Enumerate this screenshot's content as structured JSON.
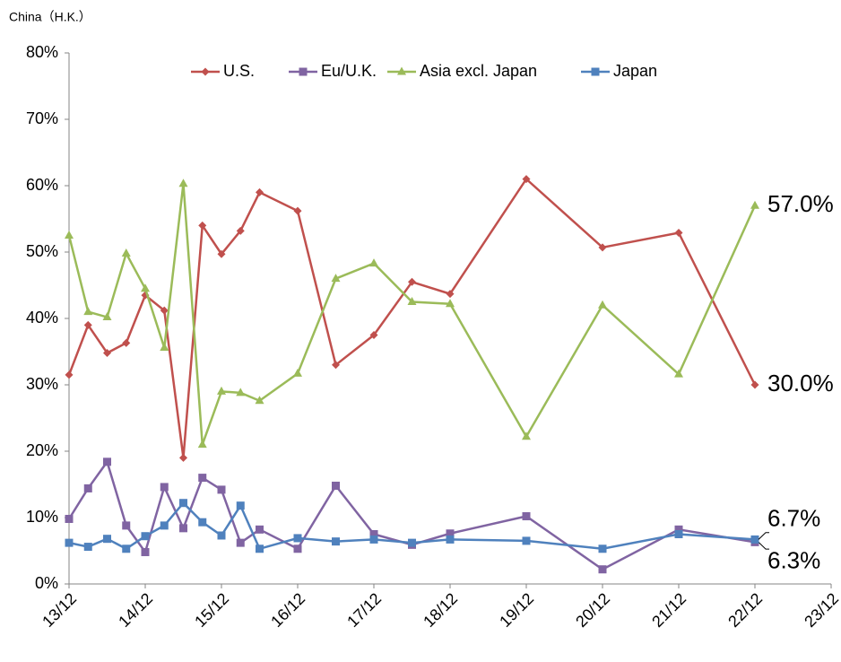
{
  "chart_data": {
    "type": "line",
    "title": "China（H.K.）",
    "x": [
      13,
      13.25,
      13.5,
      13.75,
      14,
      14.25,
      14.5,
      14.75,
      15,
      15.25,
      15.5,
      16,
      16.5,
      17,
      17.5,
      18,
      19,
      20,
      21,
      22
    ],
    "series": [
      {
        "name": "U.S.",
        "color": "#c0504d",
        "marker": "diamond",
        "values": [
          31.5,
          39,
          34.8,
          36.3,
          43.5,
          41.2,
          19,
          54,
          49.7,
          53.2,
          59,
          56.2,
          33,
          37.5,
          45.5,
          43.7,
          61,
          50.7,
          52.9,
          30
        ],
        "value_labels": [
          null,
          null,
          null,
          null,
          null,
          null,
          null,
          null,
          null,
          null,
          null,
          null,
          null,
          null,
          null,
          null,
          null,
          null,
          null,
          "30.0%"
        ]
      },
      {
        "name": "Eu/U.K.",
        "color": "#8064a2",
        "marker": "square",
        "values": [
          9.8,
          14.4,
          18.4,
          8.8,
          4.8,
          14.6,
          8.4,
          16,
          14.2,
          6.2,
          8.2,
          5.3,
          14.8,
          7.5,
          5.9,
          7.6,
          10.2,
          2.2,
          8.2,
          6.3
        ],
        "value_labels": [
          null,
          null,
          null,
          null,
          null,
          null,
          null,
          null,
          null,
          null,
          null,
          null,
          null,
          null,
          null,
          null,
          null,
          null,
          null,
          "6.3%"
        ]
      },
      {
        "name": "Asia excl. Japan",
        "color": "#9bbb59",
        "marker": "triangle",
        "values": [
          52.5,
          41,
          40.2,
          49.8,
          44.5,
          35.6,
          60.3,
          21,
          29,
          28.8,
          27.6,
          31.7,
          46,
          48.3,
          42.5,
          42.2,
          22.2,
          42,
          31.6,
          57
        ],
        "value_labels": [
          null,
          null,
          null,
          null,
          null,
          null,
          null,
          null,
          null,
          null,
          null,
          null,
          null,
          null,
          null,
          null,
          null,
          null,
          null,
          "57.0%"
        ]
      },
      {
        "name": "Japan",
        "color": "#4f81bd",
        "marker": "square",
        "values": [
          6.2,
          5.6,
          6.8,
          5.3,
          7.2,
          8.8,
          12.2,
          9.3,
          7.3,
          11.8,
          5.3,
          6.9,
          6.4,
          6.7,
          6.2,
          6.7,
          6.5,
          5.3,
          7.5,
          6.7
        ],
        "value_labels": [
          null,
          null,
          null,
          null,
          null,
          null,
          null,
          null,
          null,
          null,
          null,
          null,
          null,
          null,
          null,
          null,
          null,
          null,
          null,
          "6.7%"
        ]
      }
    ],
    "xlim": [
      13,
      23
    ],
    "xticks": [
      {
        "value": 13,
        "label": "13/12"
      },
      {
        "value": 14,
        "label": "14/12"
      },
      {
        "value": 15,
        "label": "15/12"
      },
      {
        "value": 16,
        "label": "16/12"
      },
      {
        "value": 17,
        "label": "17/12"
      },
      {
        "value": 18,
        "label": "18/12"
      },
      {
        "value": 19,
        "label": "19/12"
      },
      {
        "value": 20,
        "label": "20/12"
      },
      {
        "value": 21,
        "label": "21/12"
      },
      {
        "value": 22,
        "label": "22/12"
      },
      {
        "value": 23,
        "label": "23/12"
      }
    ],
    "ylim": [
      0,
      80
    ],
    "yticks": [
      {
        "value": 0,
        "label": "0%"
      },
      {
        "value": 10,
        "label": "10%"
      },
      {
        "value": 20,
        "label": "20%"
      },
      {
        "value": 30,
        "label": "30%"
      },
      {
        "value": 40,
        "label": "40%"
      },
      {
        "value": 50,
        "label": "50%"
      },
      {
        "value": 60,
        "label": "60%"
      },
      {
        "value": 70,
        "label": "70%"
      },
      {
        "value": 80,
        "label": "80%"
      }
    ],
    "grid": false,
    "legend": "top"
  }
}
